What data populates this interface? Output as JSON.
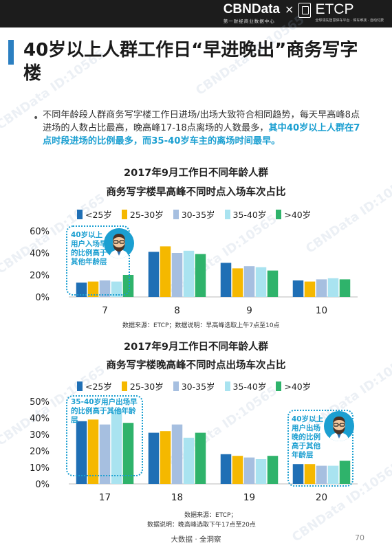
{
  "header": {
    "brand_main": "CBNData",
    "brand_main_sub": "第一财经商业数据中心",
    "brand_separator": "×",
    "brand_partner": "ETCP",
    "brand_partner_sub": "全球领先智慧停车平台 · 停车难找 · 自动付费"
  },
  "title": "40岁以上人群工作日“早进晚出”商务写字楼",
  "paragraph": {
    "plain": "不同年龄段人群商务写字楼工作日进场/出场大致符合相同趋势，每天早高峰8点进场的人数占比最高，晚高峰17-18点离场的人数最多，",
    "highlight": "其中40岁以上人群在7点时段进场的比例最多，而35-40岁车主的离场时间最早。"
  },
  "chart1": {
    "title_line1": "2017年9月工作日不同年龄人群",
    "title_line2": "商务写字楼早高峰不同时点入场车次占比",
    "note": "数据来源：ETCP；数据说明：早高峰选取上午7点至10点",
    "callout": "40岁以上用户入场早的比例高于其他年龄层"
  },
  "chart2": {
    "title_line1": "2017年9月工作日不同年龄人群",
    "title_line2": "商务写字楼晚高峰不同时点出场车次占比",
    "note_line1": "数据来源：ETCP；",
    "note_line2": "数据说明：晚高峰选取下午17点至20点",
    "callout_left": "35-40岁用户出场早的比例高于其他年龄层",
    "callout_right": "40岁以上用户出场晚的比例高于其他年龄层"
  },
  "legend": {
    "items": [
      "<25岁",
      "25-30岁",
      "30-35岁",
      "35-40岁",
      ">40岁"
    ]
  },
  "colors": {
    "series": [
      "#1f6fb5",
      "#f5b800",
      "#a6bfe0",
      "#a9e3f0",
      "#2fb36b"
    ],
    "accent": "#2b7fc1",
    "highlight": "#1b9fd1"
  },
  "footer": {
    "text": "大数据 · 全洞察",
    "page": "70"
  },
  "watermark": "CBNData ID:10565",
  "chart_data": [
    {
      "type": "bar",
      "categories": [
        "7",
        "8",
        "9",
        "10"
      ],
      "yticks": [
        "0%",
        "20%",
        "40%",
        "60%"
      ],
      "ylim": [
        0,
        60
      ],
      "series": [
        {
          "name": "<25岁",
          "values": [
            13,
            41,
            31,
            15
          ]
        },
        {
          "name": "25-30岁",
          "values": [
            14,
            46,
            26,
            14
          ]
        },
        {
          "name": "30-35岁",
          "values": [
            15,
            40,
            28,
            16
          ]
        },
        {
          "name": "35-40岁",
          "values": [
            14,
            42,
            27,
            17
          ]
        },
        {
          "name": ">40岁",
          "values": [
            20,
            39,
            24,
            16
          ]
        }
      ],
      "legend": "top",
      "grid": false
    },
    {
      "type": "bar",
      "categories": [
        "17",
        "18",
        "19",
        "20"
      ],
      "yticks": [
        "0%",
        "10%",
        "20%",
        "30%",
        "40%",
        "50%"
      ],
      "ylim": [
        0,
        50
      ],
      "series": [
        {
          "name": "<25岁",
          "values": [
            38,
            31,
            18,
            12
          ]
        },
        {
          "name": "25-30岁",
          "values": [
            39,
            32,
            17,
            12
          ]
        },
        {
          "name": "30-35岁",
          "values": [
            36,
            36,
            16,
            11
          ]
        },
        {
          "name": "35-40岁",
          "values": [
            45,
            28,
            15,
            11
          ]
        },
        {
          "name": ">40岁",
          "values": [
            37,
            31,
            17,
            14
          ]
        }
      ],
      "legend": "top",
      "grid": false
    }
  ]
}
